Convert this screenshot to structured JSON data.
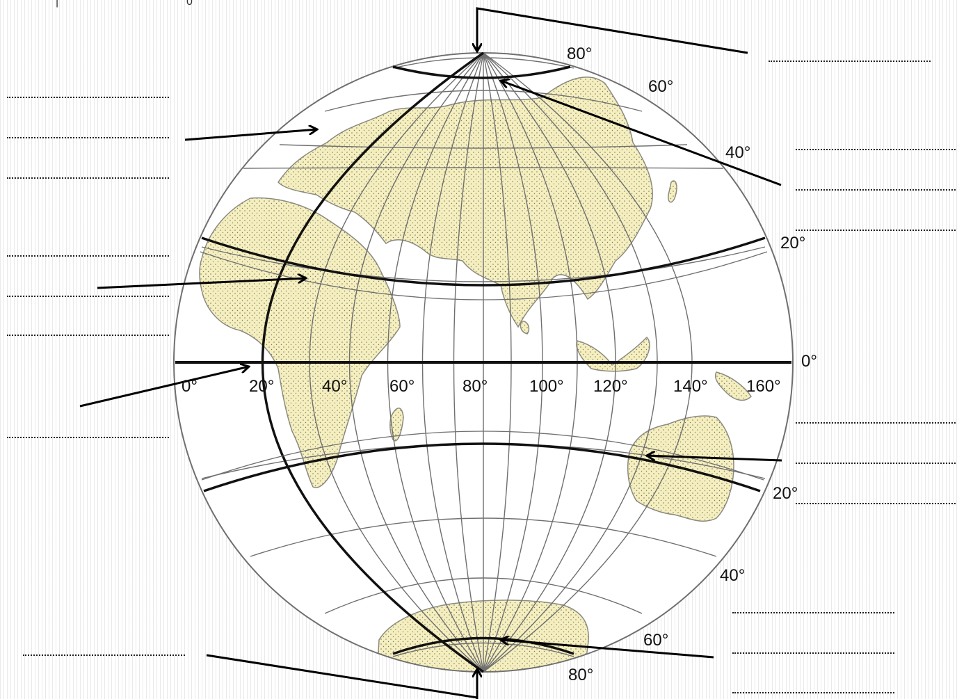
{
  "header_marks": [
    "|",
    "0"
  ],
  "longitude_labels": [
    "0°",
    "20°",
    "40°",
    "60°",
    "80°",
    "100°",
    "120°",
    "140°",
    "160°"
  ],
  "latitude_labels": {
    "north": [
      "80°",
      "60°",
      "40°",
      "20°"
    ],
    "equator": "0°",
    "south": [
      "20°",
      "40°",
      "60°",
      "80°"
    ]
  },
  "colors": {
    "land": "#f5efbf",
    "land_stroke": "#8a8a80",
    "graticule": "#6f6f6f",
    "highlight_lines": "#111111",
    "arrows": "#000000",
    "background_stripes": "#c8c8c8"
  },
  "answer_blank_count": 22,
  "arrow_targets": [
    "north-pole",
    "arctic-circle",
    "prime-meridian",
    "tropic-of-cancer",
    "equator",
    "tropic-of-capricorn",
    "antarctic-circle",
    "south-pole"
  ]
}
